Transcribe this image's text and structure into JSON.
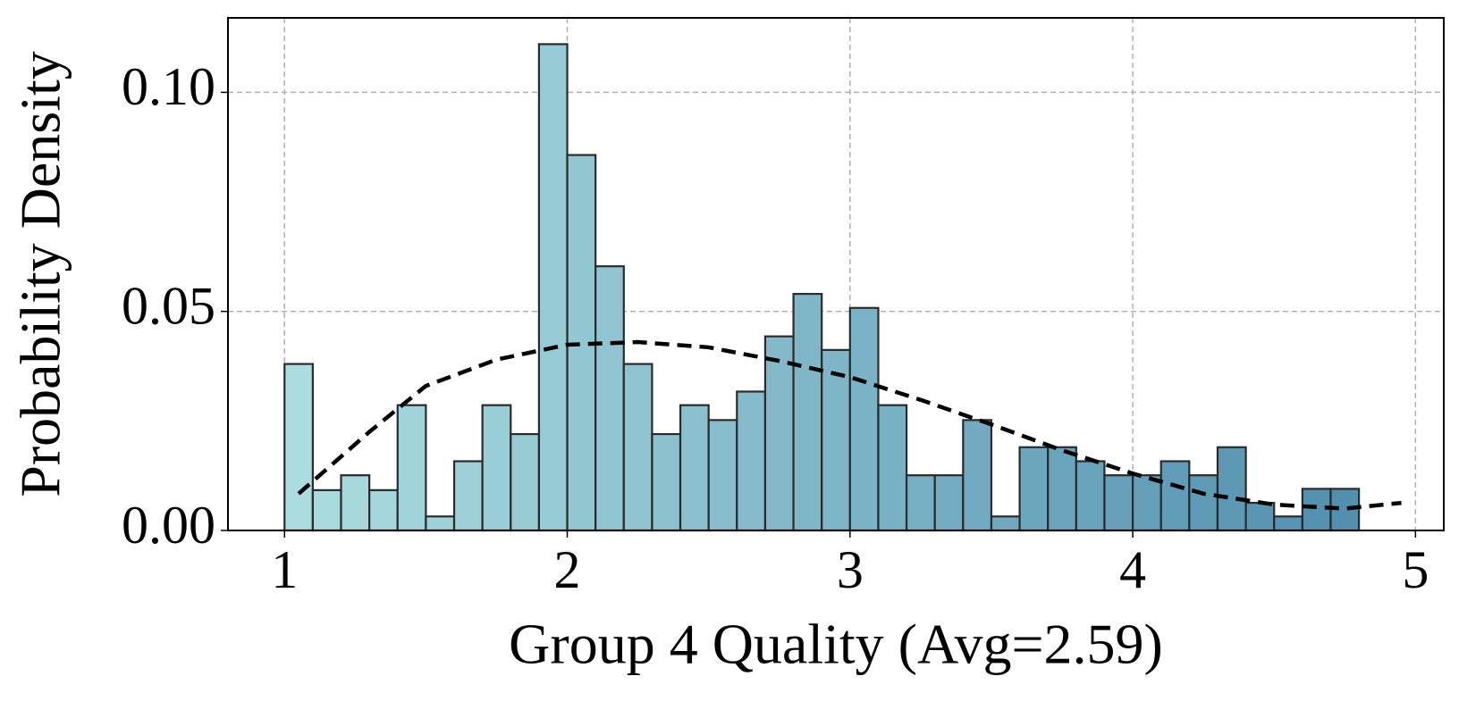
{
  "chart_data": {
    "type": "histogram",
    "xlabel": "Group 4 Quality (Avg=2.59)",
    "ylabel": "Probability Density",
    "bins": [
      1.0,
      1.1,
      1.2,
      1.3,
      1.4,
      1.5,
      1.6,
      1.7,
      1.8,
      1.9,
      2.0,
      2.1,
      2.2,
      2.3,
      2.4,
      2.5,
      2.6,
      2.7,
      2.8,
      2.9,
      3.0,
      3.1,
      3.2,
      3.3,
      3.4,
      3.5,
      3.6,
      3.7,
      3.8,
      3.9,
      4.0,
      4.1,
      4.2,
      4.3,
      4.4,
      4.5,
      4.6,
      4.7,
      4.8
    ],
    "values": [
      0.038,
      0.0092,
      0.0126,
      0.0092,
      0.0286,
      0.0032,
      0.0158,
      0.0286,
      0.022,
      0.111,
      0.0857,
      0.0603,
      0.038,
      0.022,
      0.0286,
      0.0252,
      0.0317,
      0.0443,
      0.054,
      0.0412,
      0.0508,
      0.0286,
      0.0126,
      0.0126,
      0.0252,
      0.0032,
      0.019,
      0.019,
      0.0158,
      0.0126,
      0.0126,
      0.0158,
      0.0126,
      0.019,
      0.0063,
      0.0032,
      0.0095,
      0.0095
    ],
    "bar_colors": [
      "#abdcdf",
      "#5390b0"
    ],
    "edge_color": "#2b2b2b",
    "curve": {
      "x": [
        1.05,
        1.3,
        1.5,
        1.75,
        2.0,
        2.25,
        2.5,
        2.75,
        3.0,
        3.25,
        3.5,
        3.75,
        4.0,
        4.25,
        4.5,
        4.75,
        4.95
      ],
      "y": [
        0.0084,
        0.0225,
        0.033,
        0.039,
        0.0424,
        0.043,
        0.0418,
        0.0387,
        0.035,
        0.0298,
        0.0242,
        0.0183,
        0.013,
        0.0084,
        0.0059,
        0.005,
        0.0063
      ],
      "color": "#000000"
    },
    "xlim": [
      0.8,
      5.1
    ],
    "ylim": [
      0,
      0.117
    ],
    "xticks": [
      1,
      2,
      3,
      4,
      5
    ],
    "yticks": [
      {
        "value": 0,
        "label": "0.00"
      },
      {
        "value": 0.05,
        "label": "0.05"
      },
      {
        "value": 0.1,
        "label": "0.10"
      }
    ],
    "grid": true
  }
}
